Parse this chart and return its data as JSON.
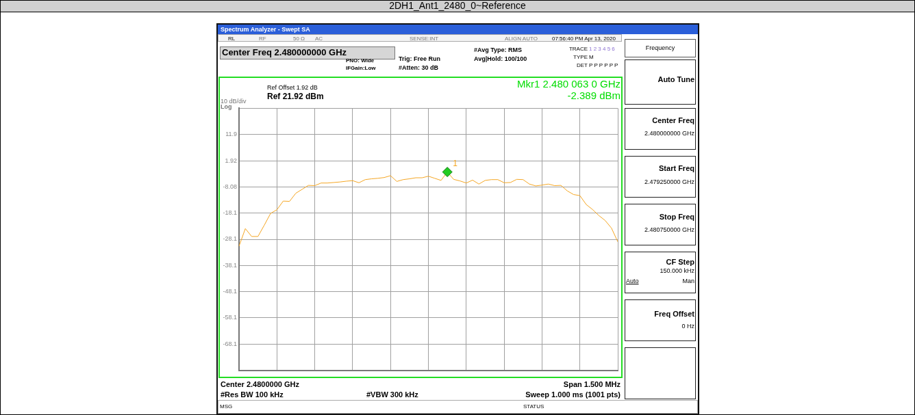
{
  "chart_data": {
    "type": "line",
    "title": "2DH1_Ant1_2480_0~Reference",
    "annotations": [
      "Spectrum Analyzer - Swept SA",
      "RL",
      "RF",
      "50 Ω",
      "AC",
      "SENSE:INT",
      "ALIGN AUTO",
      "07:56:40 PM Apr 13, 2020",
      "Center Freq 2.480000000 GHz",
      "PNO: Wide",
      "IFGain:Low",
      "Trig: Free Run",
      "#Atten: 30 dB",
      "#Avg Type: RMS",
      "Avg|Hold: 100/100",
      "TRACE",
      "1 2 3 4 5 6",
      "TYPE",
      "M",
      "DET",
      "P P P P P P",
      "Ref Offset 1.92 dB",
      "Ref 21.92 dBm",
      "10 dB/div",
      "Log",
      "Mkr1 2.480 063 0 GHz",
      "-2.389 dBm",
      "Center 2.4800000 GHz",
      "Span 1.500 MHz",
      "#Res BW 100 kHz",
      "#VBW 300 kHz",
      "Sweep  1.000 ms (1001 pts)",
      "MSG",
      "STATUS",
      "Frequency",
      "Auto Tune",
      "Center Freq",
      "2.480000000 GHz",
      "Start Freq",
      "2.479250000 GHz",
      "Stop Freq",
      "2.480750000 GHz",
      "CF Step",
      "150.000 kHz",
      "Auto",
      "Man",
      "Freq Offset",
      "0 Hz",
      "1"
    ],
    "categories": [
      null,
      null,
      null,
      null,
      null,
      null,
      null,
      null,
      null,
      null,
      null,
      null,
      null,
      null,
      null,
      null,
      null,
      null,
      null,
      null,
      null,
      null,
      null,
      null,
      null,
      null,
      null,
      null,
      null,
      null,
      null,
      null,
      null,
      null,
      null,
      null,
      null,
      null,
      null,
      null,
      null,
      null,
      null,
      null,
      null,
      null,
      null,
      null,
      null,
      null,
      null,
      null,
      null,
      null,
      null,
      null,
      null,
      null,
      null,
      null,
      null
    ],
    "series": [
      {
        "color": "#f5a623",
        "marker": "none",
        "values": [
          -30.7,
          -24,
          -27,
          -27,
          -22.7,
          -18.2,
          -16.8,
          -13.5,
          -13.6,
          -10.5,
          -9,
          -7.5,
          -7.6,
          -6.6,
          -6.6,
          -6.4,
          -6.2,
          -5.9,
          -5.7,
          -6.5,
          -5.3,
          -5,
          -4.8,
          -4.5,
          -3.8,
          -6,
          -5.3,
          -5,
          -4.6,
          -4.6,
          -4,
          -4.8,
          -5.6,
          -2.389,
          -5.2,
          -5.8,
          -6.6,
          -5.5,
          -7,
          -5.6,
          -5.3,
          -5.3,
          -6.5,
          -6.4,
          -5.2,
          -5.3,
          -7,
          -7.7,
          -7.4,
          -7,
          -7.6,
          -7.5,
          -9.6,
          -11,
          -11.4,
          -14.8,
          -16.7,
          -19,
          -20.9,
          -23.8,
          -29
        ]
      },
      {
        "type": "scatter",
        "color": "#22cc22",
        "marker": "diamond",
        "values": [
          null,
          null,
          null,
          null,
          null,
          null,
          null,
          null,
          null,
          null,
          null,
          null,
          null,
          null,
          null,
          null,
          null,
          null,
          null,
          null,
          null,
          null,
          null,
          null,
          null,
          null,
          null,
          null,
          null,
          null,
          null,
          null,
          null,
          -2.389,
          null,
          null,
          null,
          null,
          null,
          null,
          null,
          null,
          null,
          null,
          null,
          null,
          null,
          null,
          null,
          null,
          null,
          null,
          null,
          null,
          null,
          null,
          null,
          null,
          null,
          null,
          null
        ]
      }
    ],
    "ylim": [
      -78.08,
      21.92
    ],
    "yticks": [
      {
        "value": 21.92,
        "label": null
      },
      {
        "value": 11.92,
        "label": "11.9"
      },
      {
        "value": 1.92,
        "label": "1.92"
      },
      {
        "value": -8.08,
        "label": "-8.08"
      },
      {
        "value": -18.08,
        "label": "-18.1"
      },
      {
        "value": -28.08,
        "label": "-28.1"
      },
      {
        "value": -38.08,
        "label": "-38.1"
      },
      {
        "value": -48.08,
        "label": "-48.1"
      },
      {
        "value": -58.08,
        "label": "-58.1"
      },
      {
        "value": -68.08,
        "label": "-68.1"
      },
      {
        "value": -78.08,
        "label": null
      }
    ],
    "grid": true,
    "tick_labels": "y"
  }
}
